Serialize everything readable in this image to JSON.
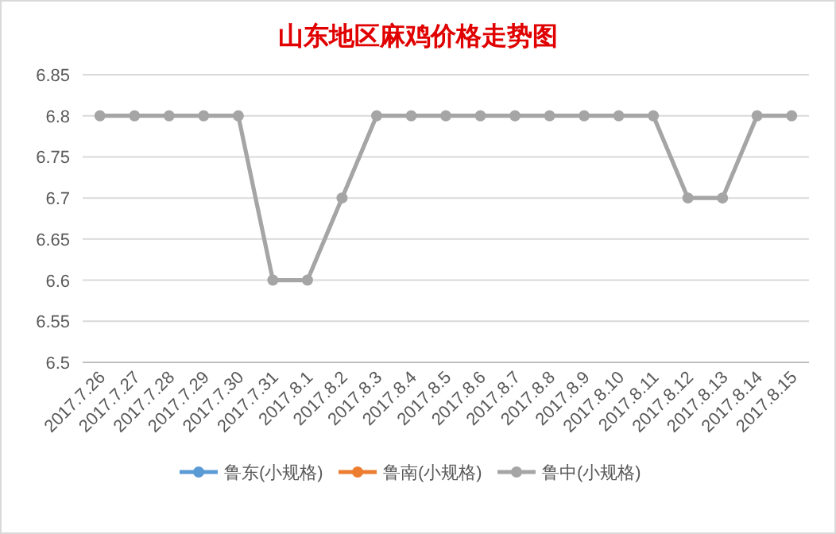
{
  "chart_data": {
    "type": "line",
    "title": "山东地区麻鸡价格走势图",
    "categories": [
      "2017.7.26",
      "2017.7.27",
      "2017.7.28",
      "2017.7.29",
      "2017.7.30",
      "2017.7.31",
      "2017.8.1",
      "2017.8.2",
      "2017.8.3",
      "2017.8.4",
      "2017.8.5",
      "2017.8.6",
      "2017.8.7",
      "2017.8.8",
      "2017.8.9",
      "2017.8.10",
      "2017.8.11",
      "2017.8.12",
      "2017.8.13",
      "2017.8.14",
      "2017.8.15"
    ],
    "series": [
      {
        "name": "鲁东(小规格)",
        "color": "#5b9bd5",
        "values": [
          null,
          null,
          null,
          null,
          null,
          null,
          null,
          null,
          null,
          null,
          null,
          null,
          null,
          null,
          null,
          null,
          null,
          null,
          null,
          null,
          null
        ]
      },
      {
        "name": "鲁南(小规格)",
        "color": "#ed7d31",
        "values": [
          null,
          null,
          null,
          null,
          null,
          null,
          null,
          null,
          null,
          null,
          null,
          null,
          null,
          null,
          null,
          null,
          null,
          null,
          null,
          null,
          null
        ]
      },
      {
        "name": "鲁中(小规格)",
        "color": "#a5a5a5",
        "values": [
          6.8,
          6.8,
          6.8,
          6.8,
          6.8,
          6.6,
          6.6,
          6.7,
          6.8,
          6.8,
          6.8,
          6.8,
          6.8,
          6.8,
          6.8,
          6.8,
          6.8,
          6.7,
          6.7,
          6.8,
          6.8
        ]
      }
    ],
    "ylim": [
      6.5,
      6.85
    ],
    "yticks": [
      6.5,
      6.55,
      6.6,
      6.65,
      6.7,
      6.75,
      6.8,
      6.85
    ],
    "grid": "y",
    "legend": "bottom",
    "marker": "circle",
    "line_style": "solid"
  }
}
